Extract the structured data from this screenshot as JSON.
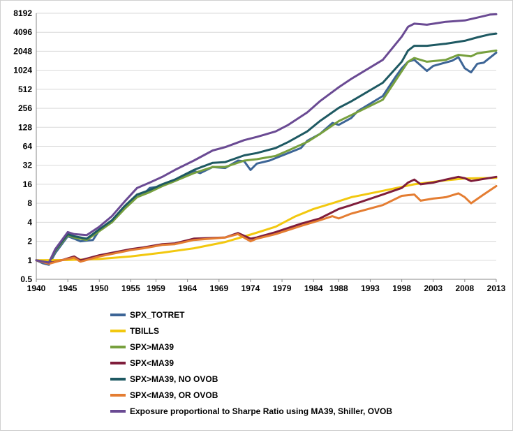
{
  "chart_data": {
    "type": "line",
    "title": "",
    "xlabel": "",
    "ylabel": "",
    "y_scale": "log2",
    "ylim": [
      0.5,
      8192
    ],
    "xlim": [
      1940,
      2013
    ],
    "grid": "horizontal",
    "legend_position": "bottom",
    "y_ticks": [
      "0.5",
      "1",
      "2",
      "4",
      "8",
      "16",
      "32",
      "64",
      "128",
      "256",
      "512",
      "1024",
      "2048",
      "4096",
      "8192"
    ],
    "y_tick_values": [
      0.5,
      1,
      2,
      4,
      8,
      16,
      32,
      64,
      128,
      256,
      512,
      1024,
      2048,
      4096,
      8192
    ],
    "x_ticks": [
      "1940",
      "1945",
      "1950",
      "1955",
      "1959",
      "1964",
      "1969",
      "1974",
      "1979",
      "1984",
      "1988",
      "1993",
      "1998",
      "2003",
      "2008",
      "2013"
    ],
    "x_tick_values": [
      1940,
      1945,
      1950,
      1955,
      1959,
      1964,
      1969,
      1974,
      1979,
      1984,
      1988,
      1993,
      1998,
      2003,
      2008,
      2013
    ],
    "series": [
      {
        "name": "SPX_TOTRET",
        "color": "#3d6596",
        "x": [
          1940,
          1941,
          1942,
          1943,
          1945,
          1946,
          1947,
          1949,
          1950,
          1952,
          1954,
          1956,
          1957,
          1958,
          1960,
          1962,
          1963,
          1965,
          1966,
          1968,
          1970,
          1972,
          1973,
          1974,
          1975,
          1977,
          1980,
          1982,
          1983,
          1985,
          1987,
          1988,
          1990,
          1991,
          1995,
          1997,
          1998,
          1999,
          2000,
          2002,
          2003,
          2006,
          2007,
          2008,
          2009,
          2010,
          2011,
          2013
        ],
        "y": [
          1.0,
          0.9,
          0.85,
          1.3,
          2.4,
          2.2,
          2.0,
          2.1,
          3.0,
          4.0,
          7.0,
          11,
          11,
          14,
          15,
          19,
          20,
          26,
          24,
          30,
          29,
          38,
          37,
          27,
          34,
          38,
          50,
          60,
          78,
          100,
          150,
          140,
          180,
          230,
          400,
          800,
          1100,
          1400,
          1500,
          1000,
          1200,
          1450,
          1650,
          1100,
          950,
          1300,
          1350,
          1950
        ]
      },
      {
        "name": "TBILLS",
        "color": "#f2c80f",
        "x": [
          1940,
          1945,
          1950,
          1955,
          1960,
          1965,
          1970,
          1974,
          1978,
          1981,
          1984,
          1987,
          1990,
          1995,
          2000,
          2005,
          2008,
          2013
        ],
        "y": [
          1.0,
          1.01,
          1.05,
          1.15,
          1.32,
          1.55,
          1.95,
          2.55,
          3.4,
          4.9,
          6.5,
          8.0,
          10.0,
          12.6,
          16.0,
          18.5,
          19.8,
          20.2
        ]
      },
      {
        "name": "SPX>MA39",
        "color": "#77a03e",
        "x": [
          1940,
          1942,
          1943,
          1945,
          1946,
          1948,
          1950,
          1952,
          1954,
          1956,
          1958,
          1960,
          1962,
          1965,
          1968,
          1970,
          1973,
          1975,
          1978,
          1980,
          1983,
          1985,
          1988,
          1990,
          1995,
          1997,
          1999,
          2000,
          2002,
          2005,
          2007,
          2009,
          2010,
          2013
        ],
        "y": [
          1.0,
          0.92,
          1.4,
          2.5,
          2.3,
          2.1,
          2.9,
          4.0,
          6.5,
          10,
          12,
          15,
          18,
          24,
          30,
          30,
          38,
          40,
          45,
          55,
          75,
          100,
          160,
          200,
          350,
          700,
          1400,
          1600,
          1400,
          1500,
          1800,
          1700,
          1900,
          2100
        ]
      },
      {
        "name": "SPX<MA39",
        "color": "#7f1d3b",
        "x": [
          1940,
          1942,
          1944,
          1946,
          1947,
          1950,
          1955,
          1957,
          1960,
          1962,
          1965,
          1970,
          1972,
          1974,
          1975,
          1978,
          1982,
          1985,
          1988,
          1990,
          1995,
          1998,
          1999,
          2000,
          2001,
          2003,
          2005,
          2007,
          2008,
          2009,
          2013
        ],
        "y": [
          1.0,
          0.9,
          1.0,
          1.15,
          1.0,
          1.2,
          1.5,
          1.6,
          1.8,
          1.85,
          2.2,
          2.3,
          2.7,
          2.2,
          2.3,
          2.8,
          3.8,
          4.6,
          6.5,
          7.5,
          11,
          14,
          17,
          19,
          16,
          17,
          19,
          21,
          20,
          18,
          21
        ]
      },
      {
        "name": "SPX>MA39, NO OVOB",
        "color": "#1e5962",
        "x": [
          1940,
          1942,
          1943,
          1945,
          1946,
          1948,
          1950,
          1952,
          1954,
          1956,
          1958,
          1960,
          1962,
          1965,
          1968,
          1970,
          1973,
          1975,
          1978,
          1980,
          1983,
          1985,
          1988,
          1990,
          1995,
          1998,
          1999,
          2000,
          2002,
          2005,
          2008,
          2010,
          2012,
          2013
        ],
        "y": [
          1.0,
          0.92,
          1.45,
          2.6,
          2.4,
          2.2,
          3.1,
          4.3,
          7.2,
          11,
          13,
          16,
          19,
          27,
          35,
          36,
          46,
          50,
          60,
          75,
          110,
          160,
          260,
          330,
          650,
          1400,
          2100,
          2500,
          2500,
          2700,
          3000,
          3400,
          3800,
          3900
        ]
      },
      {
        "name": "SPX<MA39, OR OVOB",
        "color": "#e47d32",
        "x": [
          1940,
          1942,
          1944,
          1946,
          1947,
          1950,
          1955,
          1957,
          1960,
          1962,
          1965,
          1970,
          1972,
          1974,
          1975,
          1978,
          1982,
          1985,
          1987,
          1988,
          1990,
          1995,
          1998,
          2000,
          2001,
          2003,
          2005,
          2007,
          2008,
          2009,
          2011,
          2013
        ],
        "y": [
          1.0,
          0.88,
          1.0,
          1.1,
          0.95,
          1.15,
          1.45,
          1.55,
          1.75,
          1.8,
          2.1,
          2.3,
          2.6,
          2.0,
          2.2,
          2.6,
          3.5,
          4.3,
          5.0,
          4.6,
          5.5,
          7.5,
          10.5,
          11,
          8.8,
          9.5,
          10,
          11.5,
          10,
          8.0,
          11,
          15
        ]
      },
      {
        "name": "Exposure proportional to Sharpe Ratio using MA39, Shiller, OVOB",
        "color": "#6a4a93",
        "x": [
          1940,
          1942,
          1943,
          1945,
          1946,
          1948,
          1950,
          1952,
          1954,
          1956,
          1958,
          1960,
          1962,
          1965,
          1968,
          1970,
          1973,
          1975,
          1978,
          1980,
          1983,
          1985,
          1988,
          1990,
          1995,
          1998,
          1999,
          2000,
          2002,
          2005,
          2008,
          2010,
          2012,
          2013
        ],
        "y": [
          1.0,
          0.92,
          1.5,
          2.8,
          2.6,
          2.5,
          3.4,
          5.0,
          8.5,
          14,
          17,
          21,
          27,
          38,
          55,
          62,
          80,
          90,
          110,
          140,
          220,
          330,
          550,
          750,
          1500,
          3500,
          5000,
          5600,
          5400,
          6000,
          6300,
          7000,
          7800,
          7900
        ]
      }
    ]
  }
}
